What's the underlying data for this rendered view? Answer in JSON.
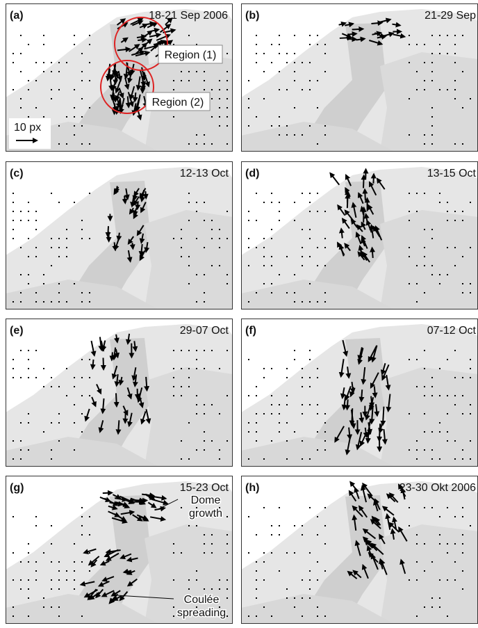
{
  "panels": [
    {
      "label": "(a)",
      "date": "18-21 Sep 2006",
      "regions": [
        "Region (1)",
        "Region (2)"
      ],
      "scale": "10 px"
    },
    {
      "label": "(b)",
      "date": "21-29 Sep"
    },
    {
      "label": "(c)",
      "date": "12-13 Oct"
    },
    {
      "label": "(d)",
      "date": "13-15 Oct"
    },
    {
      "label": "(e)",
      "date": "29-07 Oct"
    },
    {
      "label": "(f)",
      "date": "07-12 Oct"
    },
    {
      "label": "(g)",
      "date": "15-23 Oct",
      "notes": [
        [
          "Dome",
          "growth"
        ],
        [
          "Coulée",
          "spreading"
        ]
      ]
    },
    {
      "label": "(h)",
      "date": "23-30 Okt 2006"
    }
  ]
}
